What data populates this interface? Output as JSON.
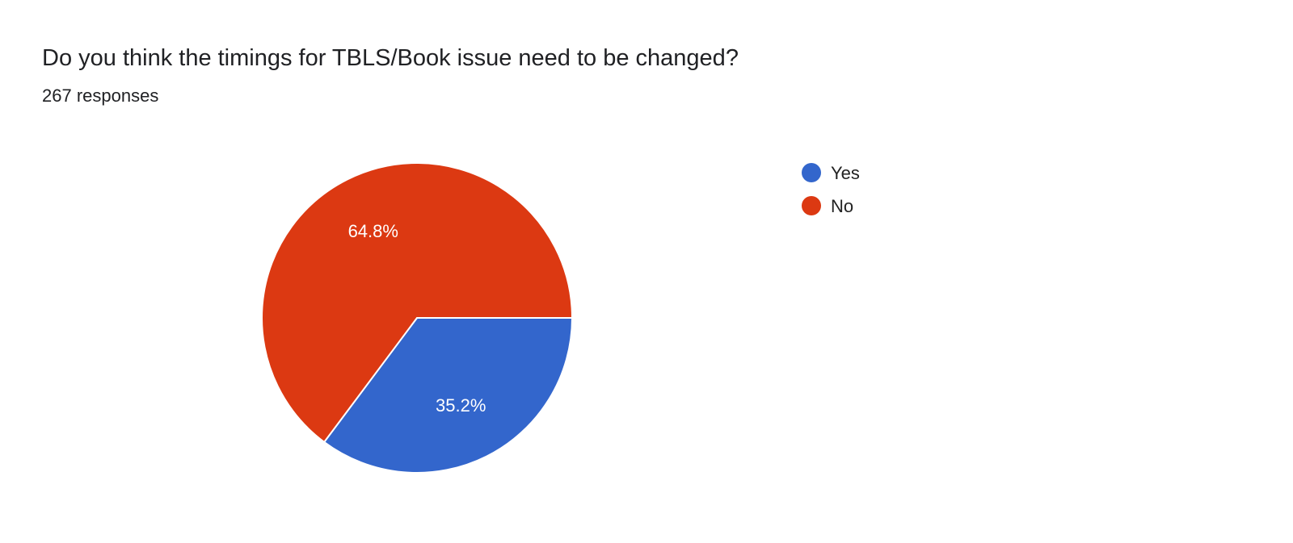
{
  "header": {
    "title": "Do you think the timings for TBLS/Book issue need to be changed?",
    "responses": "267 responses"
  },
  "chart_data": {
    "type": "pie",
    "title": "Do you think the timings for TBLS/Book issue need to be changed?",
    "subtitle": "267 responses",
    "categories": [
      "Yes",
      "No"
    ],
    "values": [
      35.2,
      64.8
    ],
    "labels": [
      "35.2%",
      "64.8%"
    ],
    "colors": [
      "#3366cc",
      "#dc3912"
    ],
    "legend_position": "right",
    "start_angle": "3 o'clock, clockwise"
  }
}
